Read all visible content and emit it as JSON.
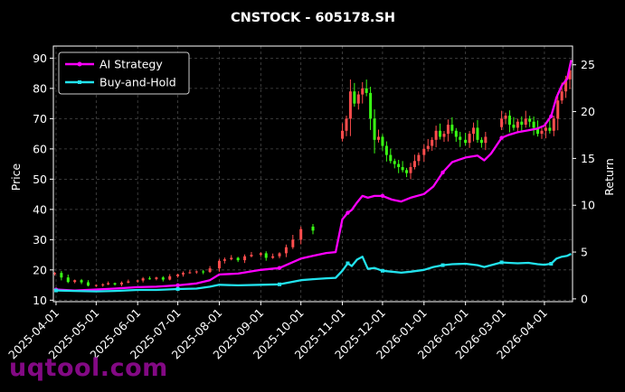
{
  "chart_data": {
    "type": "candlestick+line",
    "title": "CNSTOCK - 605178.SH",
    "ylabel": "Price",
    "y2label": "Return",
    "ylim": [
      9.5,
      94
    ],
    "y2lim": [
      -0.3,
      27
    ],
    "yticks": [
      10,
      20,
      30,
      40,
      50,
      60,
      70,
      80,
      90
    ],
    "y2ticks": [
      0,
      5,
      10,
      15,
      20,
      25
    ],
    "xlim": [
      "2025-03-30",
      "2026-04-22"
    ],
    "xticks": [
      "2025-04-01",
      "2025-05-01",
      "2025-06-01",
      "2025-07-01",
      "2025-08-01",
      "2025-09-01",
      "2025-10-01",
      "2025-11-01",
      "2025-12-01",
      "2026-01-01",
      "2026-02-01",
      "2026-03-01",
      "2026-04-01"
    ],
    "grid": true,
    "legend_position": "top-left",
    "up_color": "#ff4d4d",
    "down_color": "#39ff14",
    "price_close": [
      [
        "2025-03-31",
        19.0
      ],
      [
        "2025-04-05",
        17.5
      ],
      [
        "2025-04-10",
        16.0
      ],
      [
        "2025-04-15",
        16.6
      ],
      [
        "2025-04-20",
        15.9
      ],
      [
        "2025-04-25",
        14.8
      ],
      [
        "2025-05-01",
        15.0
      ],
      [
        "2025-05-06",
        15.2
      ],
      [
        "2025-05-10",
        15.6
      ],
      [
        "2025-05-15",
        15.2
      ],
      [
        "2025-05-20",
        15.8
      ],
      [
        "2025-05-25",
        16.2
      ],
      [
        "2025-06-01",
        16.5
      ],
      [
        "2025-06-05",
        17.2
      ],
      [
        "2025-06-10",
        17.0
      ],
      [
        "2025-06-15",
        17.5
      ],
      [
        "2025-06-20",
        16.8
      ],
      [
        "2025-06-25",
        17.9
      ],
      [
        "2025-07-01",
        18.5
      ],
      [
        "2025-07-05",
        19.0
      ],
      [
        "2025-07-10",
        19.2
      ],
      [
        "2025-07-15",
        19.5
      ],
      [
        "2025-07-20",
        19.3
      ],
      [
        "2025-07-25",
        20.5
      ],
      [
        "2025-08-01",
        23.0
      ],
      [
        "2025-08-05",
        23.5
      ],
      [
        "2025-08-10",
        24.0
      ],
      [
        "2025-08-15",
        23.2
      ],
      [
        "2025-08-20",
        24.5
      ],
      [
        "2025-08-25",
        25.0
      ],
      [
        "2025-09-01",
        25.5
      ],
      [
        "2025-09-05",
        24.0
      ],
      [
        "2025-09-10",
        24.5
      ],
      [
        "2025-09-15",
        25.5
      ],
      [
        "2025-09-20",
        27.5
      ],
      [
        "2025-09-25",
        30.0
      ],
      [
        "2025-10-01",
        33.5
      ],
      [
        "2025-10-10",
        33.0
      ],
      [
        "2025-11-01",
        66.0
      ],
      [
        "2025-11-04",
        70.0
      ],
      [
        "2025-11-07",
        79.0
      ],
      [
        "2025-11-10",
        75.0
      ],
      [
        "2025-11-13",
        78.0
      ],
      [
        "2025-11-16",
        80.0
      ],
      [
        "2025-11-19",
        78.5
      ],
      [
        "2025-11-22",
        70.0
      ],
      [
        "2025-11-25",
        63.0
      ],
      [
        "2025-11-28",
        64.0
      ],
      [
        "2025-12-01",
        61.0
      ],
      [
        "2025-12-04",
        58.0
      ],
      [
        "2025-12-07",
        56.0
      ],
      [
        "2025-12-10",
        55.0
      ],
      [
        "2025-12-13",
        54.0
      ],
      [
        "2025-12-16",
        53.0
      ],
      [
        "2025-12-19",
        52.0
      ],
      [
        "2025-12-22",
        54.0
      ],
      [
        "2025-12-25",
        56.0
      ],
      [
        "2025-12-28",
        58.0
      ],
      [
        "2026-01-01",
        60.0
      ],
      [
        "2026-01-04",
        61.0
      ],
      [
        "2026-01-07",
        63.0
      ],
      [
        "2026-01-10",
        66.0
      ],
      [
        "2026-01-13",
        64.0
      ],
      [
        "2026-01-16",
        65.0
      ],
      [
        "2026-01-19",
        68.0
      ],
      [
        "2026-01-22",
        66.0
      ],
      [
        "2026-01-25",
        64.0
      ],
      [
        "2026-01-28",
        63.0
      ],
      [
        "2026-02-01",
        62.0
      ],
      [
        "2026-02-04",
        65.0
      ],
      [
        "2026-02-07",
        67.0
      ],
      [
        "2026-02-10",
        63.0
      ],
      [
        "2026-02-13",
        62.0
      ],
      [
        "2026-02-16",
        64.0
      ],
      [
        "2026-02-28",
        70.0
      ],
      [
        "2026-03-03",
        71.0
      ],
      [
        "2026-03-06",
        68.0
      ],
      [
        "2026-03-09",
        67.0
      ],
      [
        "2026-03-12",
        69.0
      ],
      [
        "2026-03-15",
        68.0
      ],
      [
        "2026-03-18",
        70.0
      ],
      [
        "2026-03-21",
        69.0
      ],
      [
        "2026-03-24",
        67.0
      ],
      [
        "2026-03-27",
        65.0
      ],
      [
        "2026-03-30",
        66.0
      ],
      [
        "2026-04-02",
        67.0
      ],
      [
        "2026-04-05",
        66.0
      ],
      [
        "2026-04-08",
        70.0
      ],
      [
        "2026-04-11",
        76.0
      ],
      [
        "2026-04-14",
        79.0
      ],
      [
        "2026-04-17",
        83.0
      ],
      [
        "2026-04-20",
        86.0
      ]
    ],
    "series": [
      {
        "name": "AI Strategy",
        "color": "#ff00ff",
        "axis": "right",
        "points": [
          [
            "2025-04-01",
            1.0
          ],
          [
            "2025-04-15",
            0.9
          ],
          [
            "2025-05-01",
            1.0
          ],
          [
            "2025-05-15",
            1.1
          ],
          [
            "2025-06-01",
            1.25
          ],
          [
            "2025-06-15",
            1.3
          ],
          [
            "2025-07-01",
            1.45
          ],
          [
            "2025-07-15",
            1.65
          ],
          [
            "2025-07-25",
            2.0
          ],
          [
            "2025-08-01",
            2.6
          ],
          [
            "2025-08-15",
            2.7
          ],
          [
            "2025-09-01",
            3.1
          ],
          [
            "2025-09-15",
            3.3
          ],
          [
            "2025-10-01",
            4.3
          ],
          [
            "2025-10-10",
            4.6
          ],
          [
            "2025-10-20",
            4.9
          ],
          [
            "2025-10-27",
            5.0
          ],
          [
            "2025-11-01",
            8.5
          ],
          [
            "2025-11-05",
            9.2
          ],
          [
            "2025-11-08",
            9.5
          ],
          [
            "2025-11-12",
            10.3
          ],
          [
            "2025-11-16",
            11.0
          ],
          [
            "2025-11-20",
            10.8
          ],
          [
            "2025-11-25",
            11.0
          ],
          [
            "2025-12-01",
            11.0
          ],
          [
            "2025-12-08",
            10.6
          ],
          [
            "2025-12-15",
            10.4
          ],
          [
            "2025-12-22",
            10.8
          ],
          [
            "2026-01-01",
            11.2
          ],
          [
            "2026-01-08",
            12.0
          ],
          [
            "2026-01-15",
            13.5
          ],
          [
            "2026-01-22",
            14.6
          ],
          [
            "2026-02-01",
            15.1
          ],
          [
            "2026-02-10",
            15.3
          ],
          [
            "2026-02-15",
            14.8
          ],
          [
            "2026-02-20",
            15.5
          ],
          [
            "2026-02-28",
            17.2
          ],
          [
            "2026-03-05",
            17.5
          ],
          [
            "2026-03-12",
            17.8
          ],
          [
            "2026-03-20",
            18.0
          ],
          [
            "2026-03-27",
            18.2
          ],
          [
            "2026-04-01",
            18.5
          ],
          [
            "2026-04-06",
            19.5
          ],
          [
            "2026-04-10",
            21.5
          ],
          [
            "2026-04-14",
            22.8
          ],
          [
            "2026-04-18",
            23.5
          ],
          [
            "2026-04-21",
            25.5
          ]
        ]
      },
      {
        "name": "Buy-and-Hold",
        "color": "#22e3ee",
        "axis": "right",
        "points": [
          [
            "2025-04-01",
            0.9
          ],
          [
            "2025-04-15",
            0.85
          ],
          [
            "2025-05-01",
            0.8
          ],
          [
            "2025-05-15",
            0.85
          ],
          [
            "2025-06-01",
            0.95
          ],
          [
            "2025-06-15",
            0.95
          ],
          [
            "2025-07-01",
            1.05
          ],
          [
            "2025-07-15",
            1.1
          ],
          [
            "2025-07-25",
            1.3
          ],
          [
            "2025-08-01",
            1.5
          ],
          [
            "2025-08-15",
            1.45
          ],
          [
            "2025-09-01",
            1.5
          ],
          [
            "2025-09-15",
            1.55
          ],
          [
            "2025-10-01",
            2.0
          ],
          [
            "2025-10-10",
            2.1
          ],
          [
            "2025-10-20",
            2.2
          ],
          [
            "2025-10-27",
            2.25
          ],
          [
            "2025-11-01",
            3.0
          ],
          [
            "2025-11-05",
            3.8
          ],
          [
            "2025-11-08",
            3.5
          ],
          [
            "2025-11-12",
            4.2
          ],
          [
            "2025-11-16",
            4.5
          ],
          [
            "2025-11-20",
            3.2
          ],
          [
            "2025-11-25",
            3.3
          ],
          [
            "2025-12-01",
            3.0
          ],
          [
            "2025-12-08",
            2.9
          ],
          [
            "2025-12-15",
            2.8
          ],
          [
            "2025-12-22",
            2.9
          ],
          [
            "2026-01-01",
            3.1
          ],
          [
            "2026-01-08",
            3.4
          ],
          [
            "2026-01-15",
            3.6
          ],
          [
            "2026-01-22",
            3.7
          ],
          [
            "2026-02-01",
            3.75
          ],
          [
            "2026-02-10",
            3.6
          ],
          [
            "2026-02-15",
            3.4
          ],
          [
            "2026-02-20",
            3.6
          ],
          [
            "2026-02-28",
            3.9
          ],
          [
            "2026-03-05",
            3.85
          ],
          [
            "2026-03-12",
            3.8
          ],
          [
            "2026-03-20",
            3.85
          ],
          [
            "2026-03-27",
            3.7
          ],
          [
            "2026-04-01",
            3.65
          ],
          [
            "2026-04-06",
            3.75
          ],
          [
            "2026-04-10",
            4.3
          ],
          [
            "2026-04-14",
            4.5
          ],
          [
            "2026-04-18",
            4.6
          ],
          [
            "2026-04-21",
            4.8
          ]
        ]
      }
    ]
  },
  "watermark": "uqtool.com"
}
